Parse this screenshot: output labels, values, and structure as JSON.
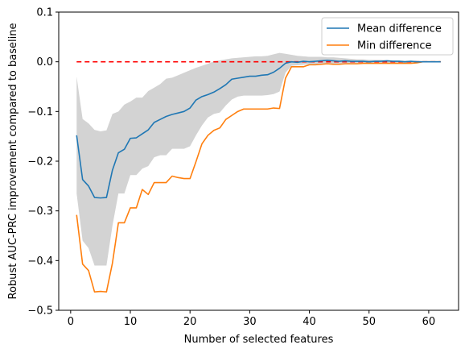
{
  "chart_data": {
    "type": "line",
    "title": "",
    "xlabel": "Number of selected features",
    "ylabel": "Robust AUC-PRC improvement compared to baseline",
    "xlim": [
      -2,
      65
    ],
    "ylim": [
      -0.5,
      0.1
    ],
    "xticks": [
      0,
      10,
      20,
      30,
      40,
      50,
      60
    ],
    "yticks": [
      -0.5,
      -0.4,
      -0.3,
      -0.2,
      -0.1,
      0.0,
      0.1
    ],
    "ytick_labels": [
      "−0.5",
      "−0.4",
      "−0.3",
      "−0.2",
      "−0.1",
      "0.0",
      "0.1"
    ],
    "grid": false,
    "legend_position": "top-right",
    "colors": {
      "mean": "#1f77b4",
      "min": "#ff7f0e",
      "band": "#d3d3d3",
      "baseline": "#ff0000"
    },
    "baseline": {
      "x": [
        1,
        62
      ],
      "y": [
        0,
        0
      ],
      "style": "dashed"
    },
    "x": [
      1,
      2,
      3,
      4,
      5,
      6,
      7,
      8,
      9,
      10,
      11,
      12,
      13,
      14,
      15,
      16,
      17,
      18,
      19,
      20,
      21,
      22,
      23,
      24,
      25,
      26,
      27,
      28,
      29,
      30,
      31,
      32,
      33,
      34,
      35,
      36,
      37,
      38,
      39,
      40,
      41,
      42,
      43,
      44,
      45,
      46,
      47,
      48,
      49,
      50,
      51,
      52,
      53,
      54,
      55,
      56,
      57,
      58,
      59,
      60,
      61,
      62
    ],
    "series": [
      {
        "name": "Mean difference",
        "values": [
          -0.148,
          -0.237,
          -0.25,
          -0.273,
          -0.274,
          -0.273,
          -0.218,
          -0.183,
          -0.176,
          -0.154,
          -0.153,
          -0.145,
          -0.137,
          -0.122,
          -0.116,
          -0.11,
          -0.106,
          -0.103,
          -0.1,
          -0.093,
          -0.077,
          -0.07,
          -0.066,
          -0.061,
          -0.054,
          -0.046,
          -0.035,
          -0.033,
          -0.031,
          -0.029,
          -0.029,
          -0.027,
          -0.026,
          -0.021,
          -0.013,
          -0.003,
          0.0,
          -0.001,
          0.001,
          0.0,
          0.001,
          0.002,
          0.003,
          0.002,
          0.001,
          0.002,
          0.001,
          0.001,
          0.001,
          0.0,
          0.001,
          0.001,
          0.002,
          0.001,
          0.001,
          0.0,
          0.001,
          0.0,
          0.0,
          0.0,
          0.0,
          0.0
        ]
      },
      {
        "name": "Min difference",
        "values": [
          -0.308,
          -0.407,
          -0.42,
          -0.463,
          -0.462,
          -0.463,
          -0.405,
          -0.324,
          -0.324,
          -0.294,
          -0.294,
          -0.257,
          -0.267,
          -0.243,
          -0.243,
          -0.243,
          -0.23,
          -0.233,
          -0.235,
          -0.235,
          -0.201,
          -0.165,
          -0.148,
          -0.138,
          -0.133,
          -0.116,
          -0.108,
          -0.1,
          -0.095,
          -0.095,
          -0.095,
          -0.095,
          -0.095,
          -0.093,
          -0.094,
          -0.033,
          -0.01,
          -0.01,
          -0.01,
          -0.006,
          -0.006,
          -0.005,
          -0.004,
          -0.005,
          -0.005,
          -0.004,
          -0.004,
          -0.004,
          -0.003,
          -0.003,
          -0.003,
          -0.003,
          -0.003,
          -0.003,
          -0.003,
          -0.003,
          -0.003,
          -0.002,
          0.0,
          0.0,
          0.0,
          0.0
        ]
      }
    ],
    "band": {
      "upper": [
        -0.03,
        -0.115,
        -0.124,
        -0.137,
        -0.14,
        -0.138,
        -0.105,
        -0.1,
        -0.086,
        -0.08,
        -0.072,
        -0.072,
        -0.059,
        -0.052,
        -0.045,
        -0.034,
        -0.032,
        -0.027,
        -0.022,
        -0.017,
        -0.012,
        -0.008,
        -0.004,
        0.001,
        0.003,
        0.005,
        0.007,
        0.008,
        0.009,
        0.01,
        0.011,
        0.011,
        0.012,
        0.015,
        0.018,
        0.016,
        0.014,
        0.012,
        0.011,
        0.01,
        0.01,
        0.01,
        0.009,
        0.009,
        0.008,
        0.007,
        0.006,
        0.005,
        0.005,
        0.004,
        0.004,
        0.004,
        0.003,
        0.003,
        0.003,
        0.002,
        0.002,
        0.002,
        0.001,
        0.001,
        0.001,
        0.001
      ],
      "lower": [
        -0.265,
        -0.36,
        -0.375,
        -0.41,
        -0.41,
        -0.41,
        -0.33,
        -0.265,
        -0.265,
        -0.228,
        -0.228,
        -0.215,
        -0.21,
        -0.192,
        -0.188,
        -0.188,
        -0.175,
        -0.175,
        -0.175,
        -0.17,
        -0.148,
        -0.128,
        -0.112,
        -0.105,
        -0.102,
        -0.088,
        -0.076,
        -0.07,
        -0.068,
        -0.068,
        -0.068,
        -0.068,
        -0.067,
        -0.065,
        -0.06,
        -0.022,
        -0.008,
        -0.007,
        -0.006,
        -0.005,
        -0.005,
        -0.004,
        -0.004,
        -0.004,
        -0.004,
        -0.003,
        -0.003,
        -0.003,
        -0.003,
        -0.002,
        -0.002,
        -0.002,
        -0.002,
        -0.002,
        -0.002,
        -0.002,
        -0.002,
        -0.001,
        -0.001,
        -0.001,
        -0.001,
        -0.001
      ]
    }
  }
}
